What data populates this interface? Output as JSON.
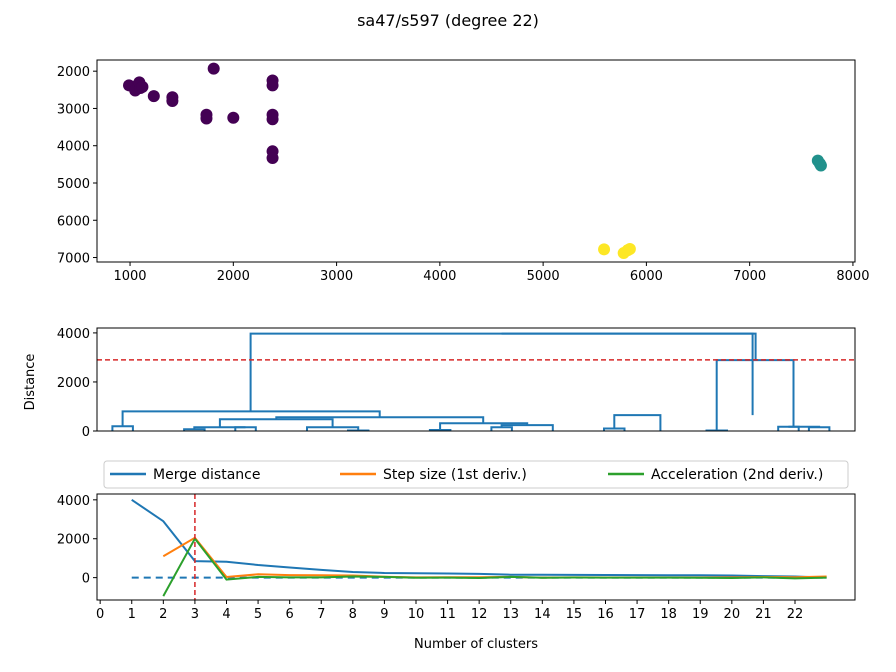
{
  "title": "sa47/s597 (degree 22)",
  "colors": {
    "purple": "#440154",
    "teal": "#21918c",
    "yellow": "#fde725",
    "blue": "#1f77b4",
    "orange": "#ff7f0e",
    "green": "#2ca02c",
    "red": "#d62728"
  },
  "chart_data": [
    {
      "type": "scatter",
      "xlim": [
        680,
        8020
      ],
      "ylim": [
        7120,
        1700
      ],
      "xticks": [
        1000,
        2000,
        3000,
        4000,
        5000,
        6000,
        7000,
        8000
      ],
      "yticks": [
        2000,
        3000,
        4000,
        5000,
        6000,
        7000
      ],
      "y_inverted": true,
      "clusters": [
        {
          "color": "#440154",
          "points": [
            [
              990,
              2380
            ],
            [
              1050,
              2520
            ],
            [
              1080,
              2350
            ],
            [
              1090,
              2300
            ],
            [
              1100,
              2450
            ],
            [
              1120,
              2420
            ],
            [
              1230,
              2670
            ],
            [
              1410,
              2700
            ],
            [
              1410,
              2800
            ],
            [
              1740,
              3170
            ],
            [
              1740,
              3270
            ],
            [
              1810,
              1930
            ],
            [
              2000,
              3250
            ],
            [
              2380,
              2250
            ],
            [
              2380,
              2380
            ],
            [
              2380,
              3170
            ],
            [
              2380,
              3290
            ],
            [
              2380,
              4150
            ],
            [
              2380,
              4330
            ]
          ]
        },
        {
          "color": "#21918c",
          "points": [
            [
              7660,
              4400
            ],
            [
              7680,
              4480
            ],
            [
              7690,
              4530
            ]
          ]
        },
        {
          "color": "#fde725",
          "points": [
            [
              5590,
              6780
            ],
            [
              5780,
              6880
            ],
            [
              5820,
              6800
            ],
            [
              5840,
              6770
            ]
          ]
        }
      ]
    },
    {
      "type": "dendrogram",
      "ylabel": "Distance",
      "ylim": [
        0,
        4200
      ],
      "yticks": [
        0,
        2000,
        4000
      ],
      "threshold": 2900,
      "segments": [
        [
          [
            15,
            0
          ],
          [
            15,
            190
          ],
          [
            35,
            190
          ],
          [
            35,
            0
          ]
        ],
        [
          [
            85,
            0
          ],
          [
            85,
            70
          ],
          [
            105,
            70
          ],
          [
            105,
            0
          ]
        ],
        [
          [
            135,
            0
          ],
          [
            135,
            150
          ],
          [
            155,
            150
          ],
          [
            155,
            0
          ]
        ],
        [
          [
            95,
            70
          ],
          [
            95,
            150
          ],
          [
            145,
            150
          ],
          [
            145,
            150
          ]
        ],
        [
          [
            205,
            0
          ],
          [
            205,
            150
          ],
          [
            255,
            150
          ],
          [
            255,
            0
          ]
        ],
        [
          [
            245,
            0
          ],
          [
            245,
            20
          ],
          [
            265,
            20
          ],
          [
            265,
            0
          ]
        ],
        [
          [
            120,
            150
          ],
          [
            120,
            480
          ],
          [
            230,
            480
          ],
          [
            230,
            150
          ]
        ],
        [
          [
            325,
            0
          ],
          [
            325,
            40
          ],
          [
            345,
            40
          ],
          [
            345,
            0
          ]
        ],
        [
          [
            385,
            0
          ],
          [
            385,
            150
          ],
          [
            405,
            150
          ],
          [
            405,
            0
          ]
        ],
        [
          [
            395,
            150
          ],
          [
            395,
            240
          ],
          [
            445,
            240
          ],
          [
            445,
            0
          ]
        ],
        [
          [
            335,
            40
          ],
          [
            335,
            320
          ],
          [
            420,
            320
          ],
          [
            420,
            240
          ]
        ],
        [
          [
            175,
            480
          ],
          [
            175,
            560
          ],
          [
            377,
            560
          ],
          [
            377,
            320
          ]
        ],
        [
          [
            25,
            190
          ],
          [
            25,
            800
          ],
          [
            276,
            800
          ],
          [
            276,
            560
          ]
        ],
        [
          [
            495,
            0
          ],
          [
            495,
            100
          ],
          [
            515,
            100
          ],
          [
            515,
            0
          ]
        ],
        [
          [
            505,
            100
          ],
          [
            505,
            650
          ],
          [
            550,
            650
          ],
          [
            550,
            0
          ]
        ],
        [
          [
            150,
            800
          ],
          [
            150,
            3970
          ],
          [
            640,
            3970
          ],
          [
            640,
            650
          ]
        ],
        [
          [
            595,
            0
          ],
          [
            595,
            20
          ],
          [
            615,
            20
          ],
          [
            615,
            0
          ]
        ],
        [
          [
            665,
            0
          ],
          [
            665,
            170
          ],
          [
            685,
            170
          ],
          [
            685,
            0
          ]
        ],
        [
          [
            695,
            0
          ],
          [
            695,
            150
          ],
          [
            715,
            150
          ],
          [
            715,
            0
          ]
        ],
        [
          [
            705,
            150
          ],
          [
            705,
            170
          ],
          [
            675,
            170
          ],
          [
            675,
            170
          ]
        ],
        [
          [
            605,
            20
          ],
          [
            605,
            2890
          ],
          [
            680,
            2890
          ],
          [
            680,
            170
          ]
        ],
        [
          [
            395,
            3970
          ],
          [
            395,
            3970
          ],
          [
            643,
            3970
          ],
          [
            643,
            2890
          ]
        ]
      ]
    },
    {
      "type": "line",
      "xlabel": "Number of clusters",
      "xlim": [
        -0.1,
        23.9
      ],
      "ylim": [
        -1150,
        4300
      ],
      "xticks": [
        0,
        1,
        2,
        3,
        4,
        5,
        6,
        7,
        8,
        9,
        10,
        11,
        12,
        13,
        14,
        15,
        16,
        17,
        18,
        19,
        20,
        21,
        22
      ],
      "yticks": [
        0,
        2000,
        4000
      ],
      "elbow": 3,
      "legend_position": "top",
      "series": [
        {
          "name": "Merge distance",
          "color": "#1f77b4",
          "x": [
            1,
            2,
            3,
            4,
            5,
            6,
            7,
            8,
            9,
            10,
            11,
            12,
            13,
            14,
            15,
            16,
            17,
            18,
            19,
            20,
            21,
            22,
            23
          ],
          "y": [
            4000,
            2900,
            850,
            820,
            650,
            520,
            400,
            290,
            240,
            230,
            210,
            190,
            150,
            150,
            140,
            135,
            130,
            125,
            120,
            110,
            80,
            60,
            0
          ]
        },
        {
          "name": "Step size (1st deriv.)",
          "color": "#ff7f0e",
          "x": [
            2,
            3,
            4,
            5,
            6,
            7,
            8,
            9,
            10,
            11,
            12,
            13,
            14,
            15,
            16,
            17,
            18,
            19,
            20,
            21,
            22,
            23
          ],
          "y": [
            1100,
            2050,
            30,
            170,
            130,
            120,
            110,
            50,
            10,
            20,
            20,
            40,
            0,
            10,
            5,
            5,
            5,
            5,
            10,
            30,
            20,
            60
          ]
        },
        {
          "name": "Acceleration (2nd deriv.)",
          "color": "#2ca02c",
          "x": [
            2,
            3,
            4,
            5,
            6,
            7,
            8,
            9,
            10,
            11,
            12,
            13,
            14,
            15,
            16,
            17,
            18,
            19,
            20,
            21,
            22,
            23
          ],
          "y": [
            -950,
            2000,
            -100,
            40,
            10,
            10,
            60,
            40,
            -10,
            0,
            -20,
            40,
            -10,
            5,
            0,
            0,
            0,
            -5,
            -20,
            10,
            -40,
            0
          ]
        }
      ]
    }
  ]
}
